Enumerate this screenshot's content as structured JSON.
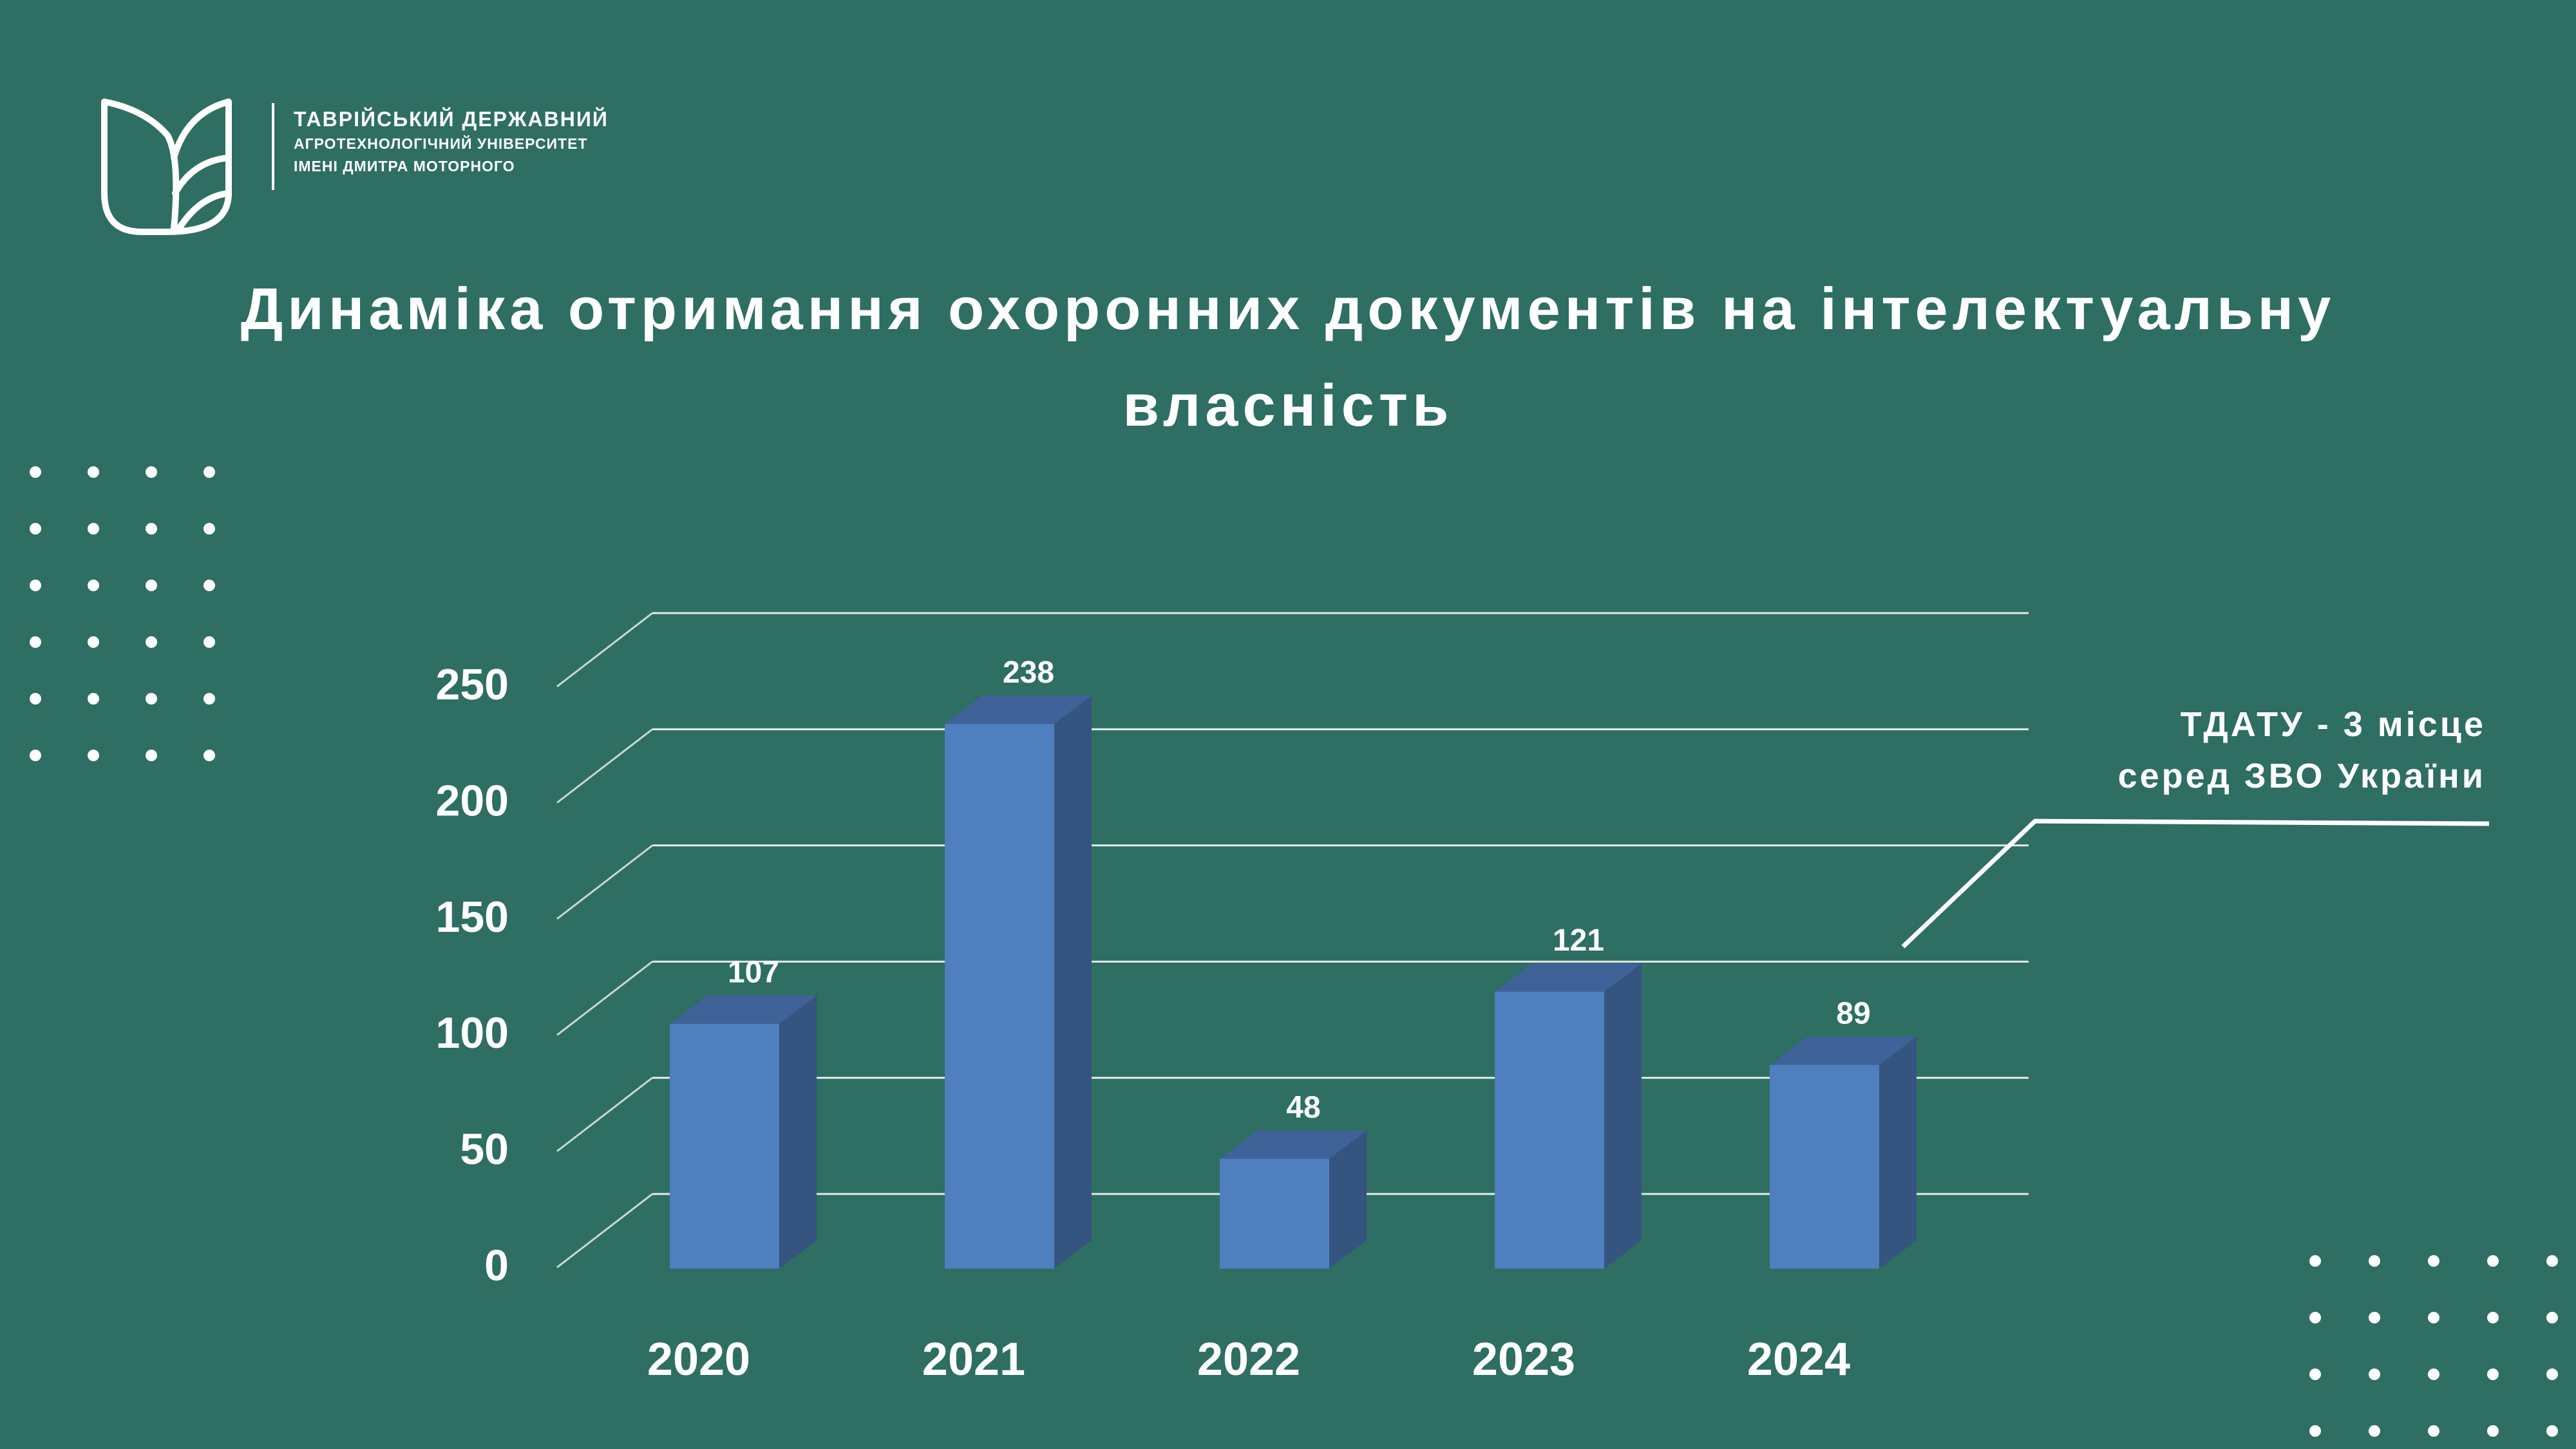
{
  "header": {
    "logo_icon": "leaf-book-logo-icon",
    "university_line1": "ТАВРІЙСЬКИЙ ДЕРЖАВНИЙ",
    "university_line2": "АГРОТЕХНОЛОГІЧНИЙ УНІВЕРСИТЕТ",
    "university_line3": "ІМЕНІ ДМИТРА МОТОРНОГО"
  },
  "title": {
    "line1": "Динаміка отримання охоронних документів на інтелектуальну",
    "line2": "власність"
  },
  "annotation": {
    "line1": "ТДАТУ - 3 місце",
    "line2": "серед ЗВО України"
  },
  "colors": {
    "background": "#2e6e63",
    "bar_front": "#4f7fbf",
    "bar_side": "#35547f",
    "bar_top": "#3f6299",
    "text": "#ffffff"
  },
  "chart_data": {
    "type": "bar",
    "categories": [
      "2020",
      "2021",
      "2022",
      "2023",
      "2024"
    ],
    "values": [
      107,
      238,
      48,
      121,
      89
    ],
    "ylim": [
      0,
      250
    ],
    "yticks": [
      0,
      50,
      100,
      150,
      200,
      250
    ],
    "grid": true,
    "data_labels": true,
    "style": "3d-column"
  }
}
